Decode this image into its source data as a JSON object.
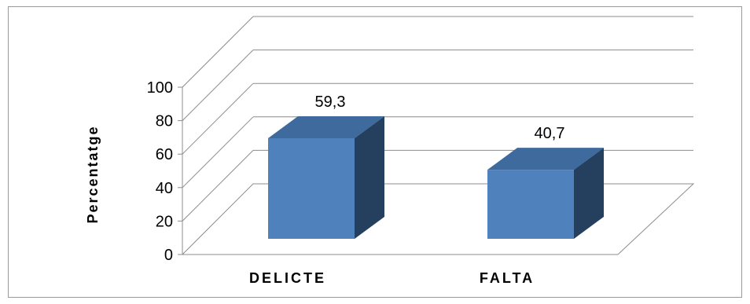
{
  "chart_data": {
    "type": "bar",
    "title": "",
    "xlabel": "",
    "ylabel": "Percentatge",
    "categories": [
      "DELICTE",
      "FALTA"
    ],
    "values": [
      59.3,
      40.7
    ],
    "value_labels": [
      "59,3",
      "40,7"
    ],
    "ylim": [
      0,
      100
    ],
    "yticks": [
      "0",
      "20",
      "40",
      "60",
      "80",
      "100"
    ],
    "grid": true,
    "legend": "none",
    "style": "3d-column",
    "colors": {
      "front": "#4f81bd",
      "top": "#3e6a9e",
      "side": "#253f5f"
    }
  }
}
